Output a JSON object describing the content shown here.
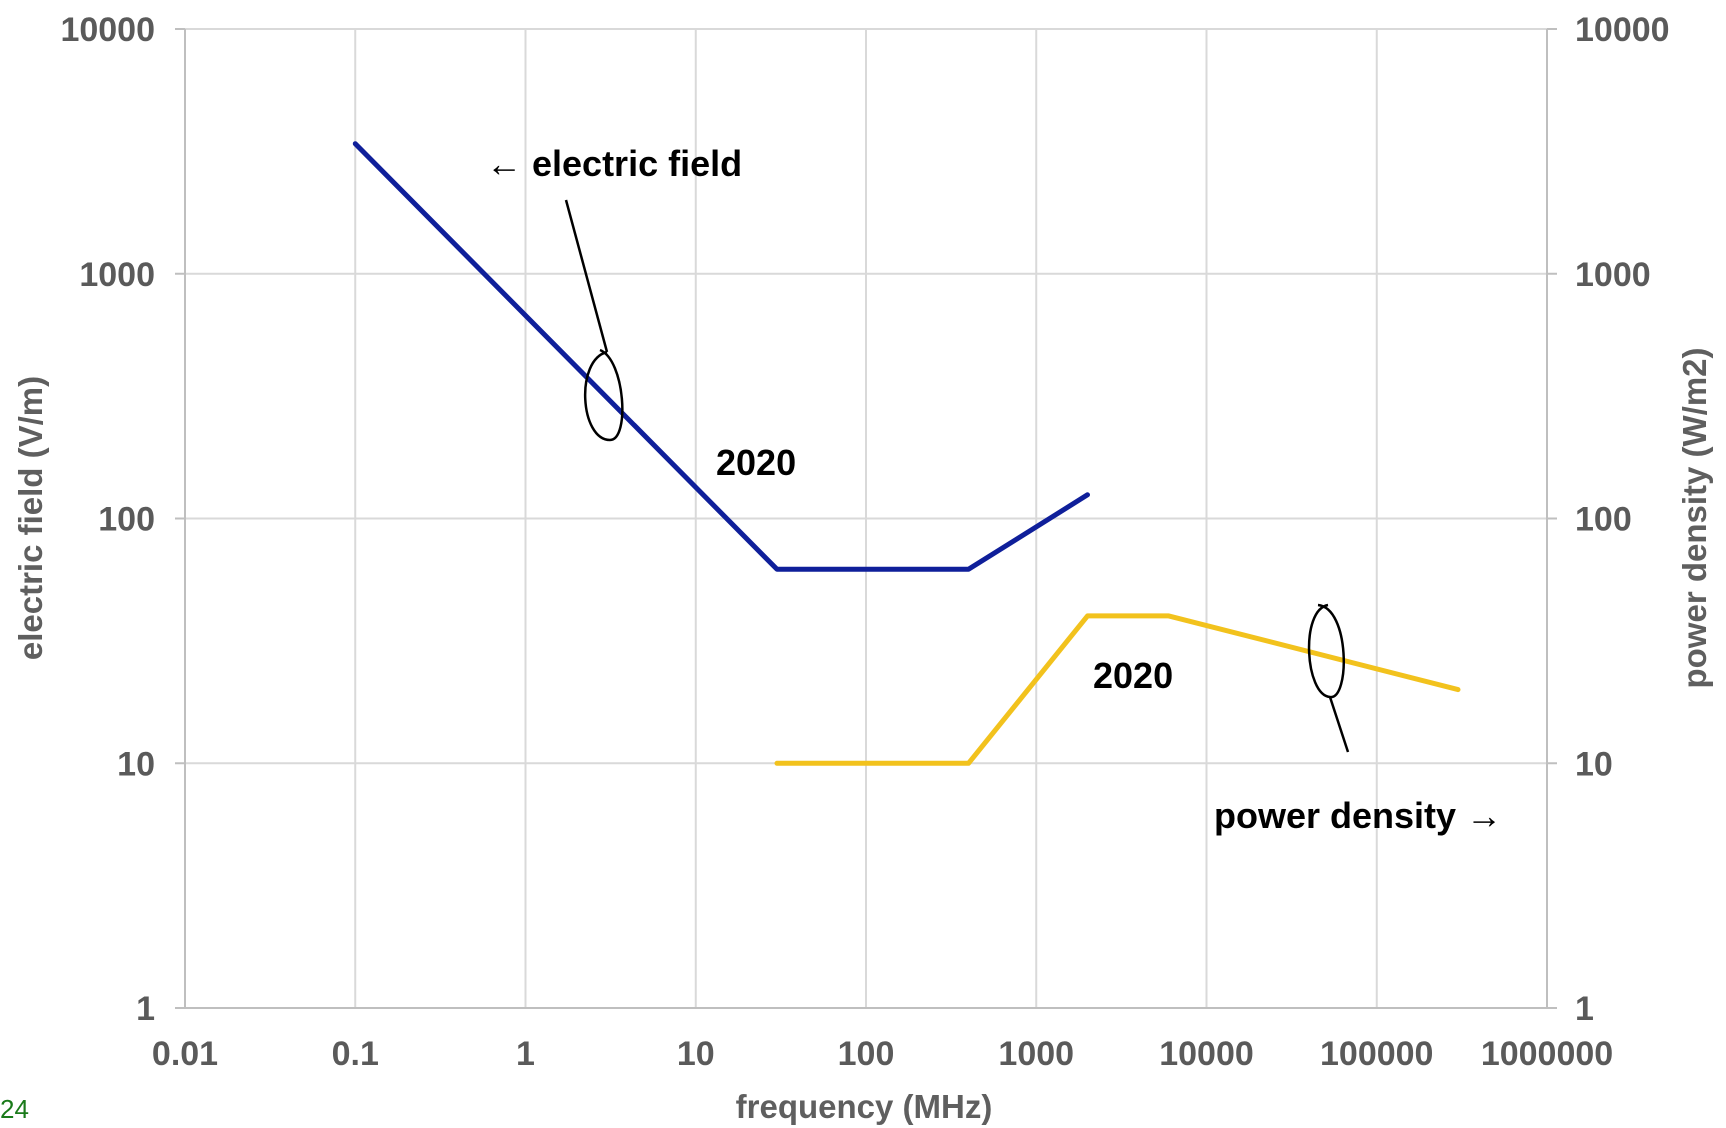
{
  "chart_data": {
    "type": "line",
    "xlabel": "frequency (MHz)",
    "ylabel": "electric field (V/m)",
    "y2label": "power density (W/m2)",
    "x_scale": "log",
    "y_scale": "log",
    "y2_scale": "log",
    "xlim": [
      0.01,
      1000000
    ],
    "ylim": [
      1,
      10000
    ],
    "y2lim": [
      1,
      10000
    ],
    "grid": true,
    "x_ticks": [
      "0.01",
      "0.1",
      "1",
      "10",
      "100",
      "1000",
      "10000",
      "100000",
      "1000000"
    ],
    "y_ticks": [
      "1",
      "10",
      "100",
      "1000",
      "10000"
    ],
    "y2_ticks": [
      "1",
      "10",
      "100",
      "1000",
      "10000"
    ],
    "series": [
      {
        "axis": "left",
        "color": "#0f1f9a",
        "points": [
          {
            "x": 0.1,
            "y": 3400
          },
          {
            "x": 30,
            "y": 62
          },
          {
            "x": 400,
            "y": 62
          },
          {
            "x": 2000,
            "y": 125
          }
        ]
      },
      {
        "axis": "right",
        "color": "#f2c21d",
        "points": [
          {
            "x": 30,
            "y": 10
          },
          {
            "x": 400,
            "y": 10
          },
          {
            "x": 2000,
            "y": 40
          },
          {
            "x": 6000,
            "y": 40
          },
          {
            "x": 300000,
            "y": 20
          }
        ]
      }
    ],
    "annotations": {
      "electric_field": "← electric field",
      "power_density": "power density →",
      "year_left": "2020",
      "year_right": "2020"
    }
  },
  "page_number": "24"
}
